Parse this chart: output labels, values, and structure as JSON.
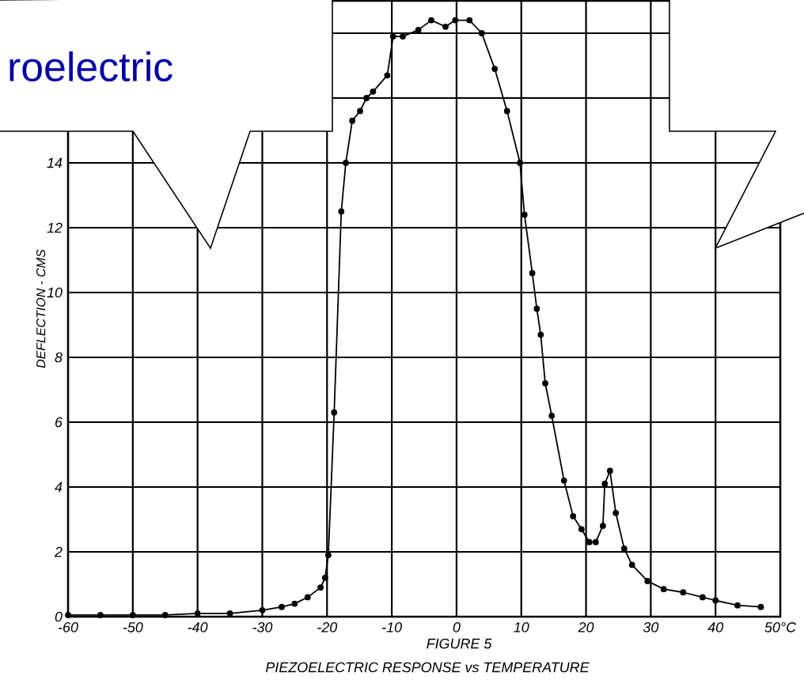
{
  "chart_data": {
    "type": "line",
    "title": "PIEZOELECTRIC RESPONSE vs TEMPERATURE",
    "subtitle": "FIGURE 5",
    "ylabel": "DEFLECTION - CMS",
    "annotations": [
      "roelectric"
    ],
    "x": [
      -60,
      -55,
      -50,
      -45,
      -40,
      -35,
      -30,
      -27,
      -25,
      -23,
      -21,
      -20.3,
      -19.8,
      -18.9,
      -17.8,
      -17.1,
      -16.1,
      -14.9,
      -13.9,
      -12.9,
      -10.7,
      -9.8,
      -8.3,
      -5.9,
      -3.9,
      -1.7,
      -0.2,
      2.0,
      3.9,
      5.9,
      7.8,
      9.8,
      10.5,
      11.7,
      12.4,
      13.0,
      13.7,
      14.7,
      16.6,
      18.0,
      19.3,
      20.5,
      21.5,
      22.6,
      22.9,
      23.7,
      24.6,
      25.9,
      27.1,
      29.5,
      32,
      35,
      38,
      40,
      43.4,
      47
    ],
    "series": [
      {
        "color": "#000000",
        "values": [
          0.05,
          0.05,
          0.05,
          0.05,
          0.1,
          0.1,
          0.2,
          0.3,
          0.4,
          0.6,
          0.9,
          1.2,
          1.9,
          6.3,
          12.5,
          14.0,
          15.3,
          15.6,
          16.0,
          16.2,
          16.7,
          17.9,
          17.9,
          18.1,
          18.4,
          18.2,
          18.4,
          18.4,
          18.0,
          16.9,
          15.6,
          14.0,
          12.4,
          10.6,
          9.5,
          8.7,
          7.2,
          6.2,
          4.2,
          3.1,
          2.7,
          2.3,
          2.3,
          2.8,
          4.1,
          4.5,
          3.2,
          2.1,
          1.6,
          1.1,
          0.85,
          0.75,
          0.6,
          0.5,
          0.35,
          0.3
        ]
      }
    ],
    "xlim": [
      -60,
      50
    ],
    "ylim": [
      0,
      19
    ],
    "xticks": [
      -60,
      -50,
      -40,
      -30,
      -20,
      -10,
      0,
      10,
      20,
      30,
      40,
      {
        "value": 50,
        "label": "50°C"
      }
    ],
    "yticks": [
      0,
      2,
      4,
      6,
      8,
      10,
      12,
      14,
      {
        "value": 16,
        "label": null
      },
      {
        "value": 18,
        "label": null
      }
    ],
    "grid": true,
    "marker": "circle",
    "line_style": "solid"
  }
}
